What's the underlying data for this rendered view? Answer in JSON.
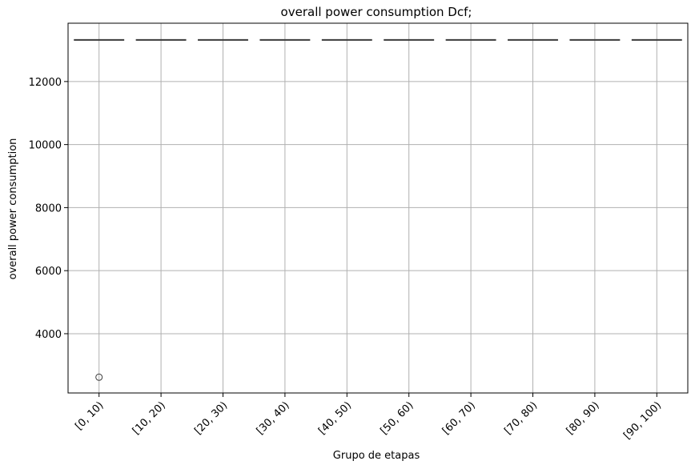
{
  "chart_data": {
    "type": "box",
    "title": "overall power consumption Dcf;",
    "xlabel": "Grupo de etapas",
    "ylabel": "overall power consumption",
    "categories": [
      "[0, 10)",
      "[10, 20)",
      "[20, 30)",
      "[30, 40)",
      "[40, 50)",
      "[50, 60)",
      "[60, 70)",
      "[70, 80)",
      "[80, 90)",
      "[90, 100)"
    ],
    "medians": [
      13320,
      13320,
      13320,
      13320,
      13320,
      13320,
      13320,
      13320,
      13320,
      13320
    ],
    "outliers": [
      {
        "category": "[0, 10)",
        "value": 2620
      }
    ],
    "yticks": [
      4000,
      6000,
      8000,
      10000,
      12000
    ],
    "ylim": [
      2120,
      13850
    ],
    "grid": true,
    "x_tick_rotation": 45
  }
}
